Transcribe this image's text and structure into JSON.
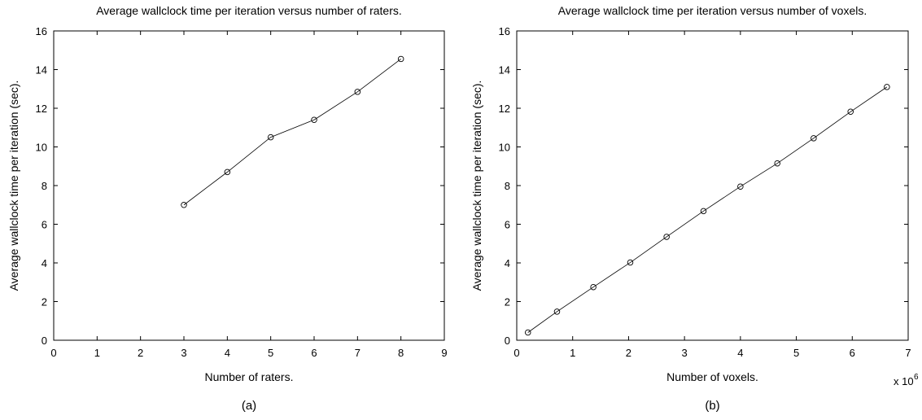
{
  "chart_data": [
    {
      "type": "line",
      "title": "Average wallclock time per iteration versus number of raters.",
      "xlabel": "Number of raters.",
      "ylabel": "Average wallclock time per iteration (sec).",
      "xlim": [
        0,
        9
      ],
      "ylim": [
        0,
        16
      ],
      "xticks": [
        0,
        1,
        2,
        3,
        4,
        5,
        6,
        7,
        8,
        9
      ],
      "yticks": [
        0,
        2,
        4,
        6,
        8,
        10,
        12,
        14,
        16
      ],
      "x_multiplier_label": "",
      "marker": "circle",
      "grid": false,
      "caption": "(a)",
      "series": [
        {
          "x": [
            3,
            4,
            5,
            6,
            7,
            8
          ],
          "y": [
            7.0,
            8.7,
            10.5,
            11.4,
            12.85,
            14.55
          ]
        }
      ]
    },
    {
      "type": "line",
      "title": "Average wallclock time per iteration versus number of voxels.",
      "xlabel": "Number of voxels.",
      "ylabel": "Average wallclock time per iteration (sec).",
      "xlim": [
        0,
        7000000
      ],
      "ylim": [
        0,
        16
      ],
      "xticks": [
        0,
        1000000,
        2000000,
        3000000,
        4000000,
        5000000,
        6000000,
        7000000
      ],
      "xticklabels": [
        "0",
        "1",
        "2",
        "3",
        "4",
        "5",
        "6",
        "7"
      ],
      "yticks": [
        0,
        2,
        4,
        6,
        8,
        10,
        12,
        14,
        16
      ],
      "x_multiplier_label": "x 10",
      "x_multiplier_exponent": "6",
      "marker": "circle",
      "grid": false,
      "caption": "(b)",
      "series": [
        {
          "x": [
            200000,
            720000,
            1370000,
            2030000,
            2680000,
            3340000,
            4000000,
            4660000,
            5310000,
            5970000,
            6620000
          ],
          "y": [
            0.4,
            1.48,
            2.75,
            4.02,
            5.35,
            6.68,
            7.95,
            9.15,
            10.45,
            11.82,
            13.1
          ]
        }
      ]
    }
  ]
}
